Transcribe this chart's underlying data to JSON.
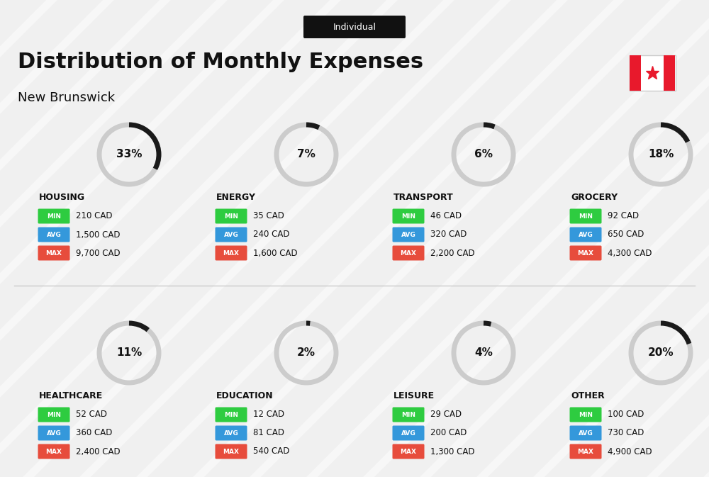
{
  "title": "Distribution of Monthly Expenses",
  "subtitle": "New Brunswick",
  "badge": "Individual",
  "bg_color": "#f0f0f0",
  "categories": [
    {
      "name": "HOUSING",
      "pct": 33,
      "min": "210 CAD",
      "avg": "1,500 CAD",
      "max": "9,700 CAD",
      "row": 0,
      "col": 0
    },
    {
      "name": "ENERGY",
      "pct": 7,
      "min": "35 CAD",
      "avg": "240 CAD",
      "max": "1,600 CAD",
      "row": 0,
      "col": 1
    },
    {
      "name": "TRANSPORT",
      "pct": 6,
      "min": "46 CAD",
      "avg": "320 CAD",
      "max": "2,200 CAD",
      "row": 0,
      "col": 2
    },
    {
      "name": "GROCERY",
      "pct": 18,
      "min": "92 CAD",
      "avg": "650 CAD",
      "max": "4,300 CAD",
      "row": 0,
      "col": 3
    },
    {
      "name": "HEALTHCARE",
      "pct": 11,
      "min": "52 CAD",
      "avg": "360 CAD",
      "max": "2,400 CAD",
      "row": 1,
      "col": 0
    },
    {
      "name": "EDUCATION",
      "pct": 2,
      "min": "12 CAD",
      "avg": "81 CAD",
      "max": "540 CAD",
      "row": 1,
      "col": 1
    },
    {
      "name": "LEISURE",
      "pct": 4,
      "min": "29 CAD",
      "avg": "200 CAD",
      "max": "1,300 CAD",
      "row": 1,
      "col": 2
    },
    {
      "name": "OTHER",
      "pct": 20,
      "min": "100 CAD",
      "avg": "730 CAD",
      "max": "4,900 CAD",
      "row": 1,
      "col": 3
    }
  ],
  "min_color": "#2ecc40",
  "avg_color": "#3498db",
  "max_color": "#e74c3c",
  "arc_filled_color": "#1a1a1a",
  "arc_empty_color": "#cccccc"
}
